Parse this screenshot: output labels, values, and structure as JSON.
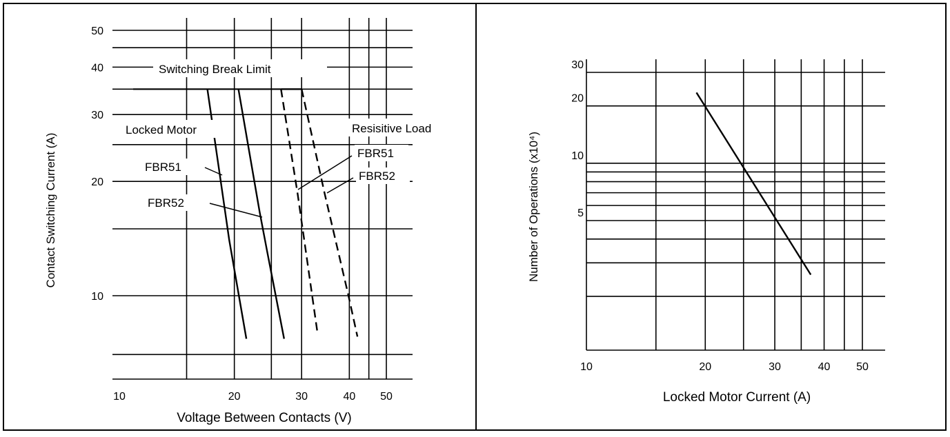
{
  "chart_data": [
    {
      "type": "line",
      "xscale": "log",
      "yscale": "log",
      "xlabel": "Voltage Between Contacts (V)",
      "ylabel": "Contact Switching Current (A)",
      "x_ticks": [
        {
          "value": 10,
          "label": "10"
        },
        {
          "value": 20,
          "label": "20"
        },
        {
          "value": 30,
          "label": "30"
        },
        {
          "value": 40,
          "label": "40"
        },
        {
          "value": 50,
          "label": "50"
        }
      ],
      "y_ticks": [
        {
          "value": 10,
          "label": "10"
        },
        {
          "value": 20,
          "label": "20"
        },
        {
          "value": 30,
          "label": "30"
        },
        {
          "value": 40,
          "label": "40"
        },
        {
          "value": 50,
          "label": "50"
        }
      ],
      "limit": {
        "label": "Switching Break Limit",
        "y": 35
      },
      "group_labels": [
        "Locked Motor",
        "Resisitive Load"
      ],
      "series": [
        {
          "name": "FBR51",
          "group": "Locked Motor",
          "dashed": false,
          "x": [
            17,
            18.3,
            19.4,
            21.5
          ],
          "y": [
            35,
            21,
            14,
            7.7
          ]
        },
        {
          "name": "FBR52",
          "group": "Locked Motor",
          "dashed": false,
          "x": [
            20.5,
            23.3,
            24.4,
            27
          ],
          "y": [
            35,
            16.6,
            13,
            7.7
          ]
        },
        {
          "name": "FBR51",
          "group": "Resisitive Load",
          "dashed": false,
          "x": [
            26.5,
            30
          ],
          "y": [
            35,
            35
          ]
        },
        {
          "name": "FBR51",
          "group": "Resisitive Load",
          "dashed": true,
          "x": [
            26.5,
            29.3,
            33
          ],
          "y": [
            35,
            18.5,
            8
          ]
        },
        {
          "name": "FBR52",
          "group": "Resisitive Load",
          "dashed": true,
          "x": [
            30,
            34.5,
            39.8,
            42
          ],
          "y": [
            35,
            18.5,
            10,
            7.8
          ]
        }
      ],
      "grid": true
    },
    {
      "type": "line",
      "xscale": "log",
      "yscale": "log",
      "xlabel": "Locked Motor Current (A)",
      "ylabel": "Number of Operations (x10⁴)",
      "x_ticks": [
        {
          "value": 10,
          "label": "10"
        },
        {
          "value": 20,
          "label": "20"
        },
        {
          "value": 30,
          "label": "30"
        },
        {
          "value": 40,
          "label": "40"
        },
        {
          "value": 50,
          "label": "50"
        }
      ],
      "y_ticks": [
        {
          "value": 5,
          "label": "5"
        },
        {
          "value": 10,
          "label": "10"
        },
        {
          "value": 20,
          "label": "20"
        },
        {
          "value": 30,
          "label": "30"
        }
      ],
      "series": [
        {
          "x": [
            19,
            37
          ],
          "y": [
            23.5,
            2.6
          ]
        }
      ],
      "grid": true
    }
  ]
}
